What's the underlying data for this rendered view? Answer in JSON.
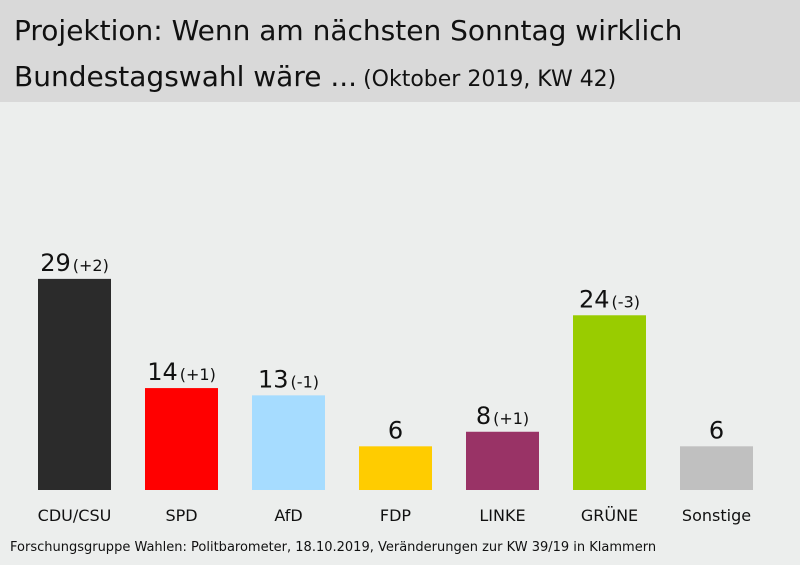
{
  "chart_data": {
    "type": "bar",
    "title": "Projektion: Wenn am nächsten Sonntag wirklich",
    "title_line2": "Bundestagswahl wäre ...",
    "subtitle": "(Oktober 2019, KW 42)",
    "categories": [
      "CDU/CSU",
      "SPD",
      "AfD",
      "FDP",
      "LINKE",
      "GRÜNE",
      "Sonstige"
    ],
    "values": [
      29,
      14,
      13,
      6,
      8,
      24,
      6
    ],
    "changes": [
      "(+2)",
      "(+1)",
      "(-1)",
      "",
      "(+1)",
      "(-3)",
      ""
    ],
    "colors": [
      "#2b2b2b",
      "#ff0000",
      "#a6dcff",
      "#ffcc00",
      "#993366",
      "#99cc00",
      "#c0c0c0"
    ],
    "ylim": [
      0,
      30
    ],
    "grid": false,
    "legend": "none"
  },
  "source": "Forschungsgruppe  Wahlen: Politbarometer, 18.10.2019,  Veränderungen  zur KW 39/19  in Klammern"
}
